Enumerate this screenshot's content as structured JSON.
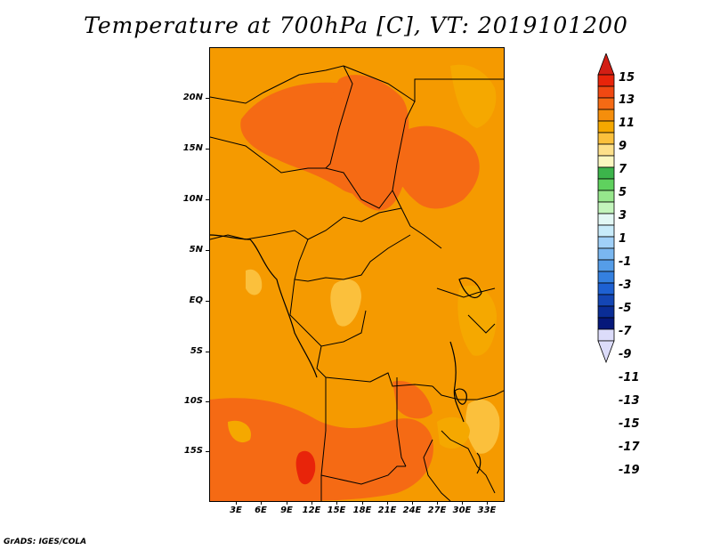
{
  "title": "Temperature at 700hPa [C], VT: 2019101200",
  "credit": "GrADS: IGES/COLA",
  "map": {
    "y_ticks": [
      "20N",
      "15N",
      "10N",
      "5N",
      "EQ",
      "5S",
      "10S",
      "15S"
    ],
    "x_ticks": [
      "3E",
      "6E",
      "9E",
      "12E",
      "15E",
      "18E",
      "21E",
      "24E",
      "27E",
      "30E",
      "33E"
    ],
    "lon_range_deg_east": [
      0,
      34
    ],
    "lat_range_deg": [
      -20,
      24
    ]
  },
  "colorbar": {
    "labels": [
      "15",
      "13",
      "11",
      "9",
      "7",
      "5",
      "3",
      "1",
      "-1",
      "-3",
      "-5",
      "-7",
      "-9",
      "-11",
      "-13",
      "-15",
      "-17",
      "-19"
    ],
    "colors": [
      "#e8240a",
      "#f04812",
      "#f56a14",
      "#f58e0c",
      "#f5a800",
      "#fbc03c",
      "#fde08a",
      "#fbf7c0",
      "#3cb44b",
      "#5fd15e",
      "#96e68c",
      "#c3f5bc",
      "#e3f8f5",
      "#c8ebfa",
      "#a0d0f8",
      "#7ab7f0",
      "#559de8",
      "#3480e0",
      "#1e61d2",
      "#1446b4",
      "#0a2d96",
      "#06187a",
      "#dcdcfa"
    ],
    "top_arrow_color": "#d21e14",
    "bottom_arrow_color": "#dcdcfa"
  }
}
